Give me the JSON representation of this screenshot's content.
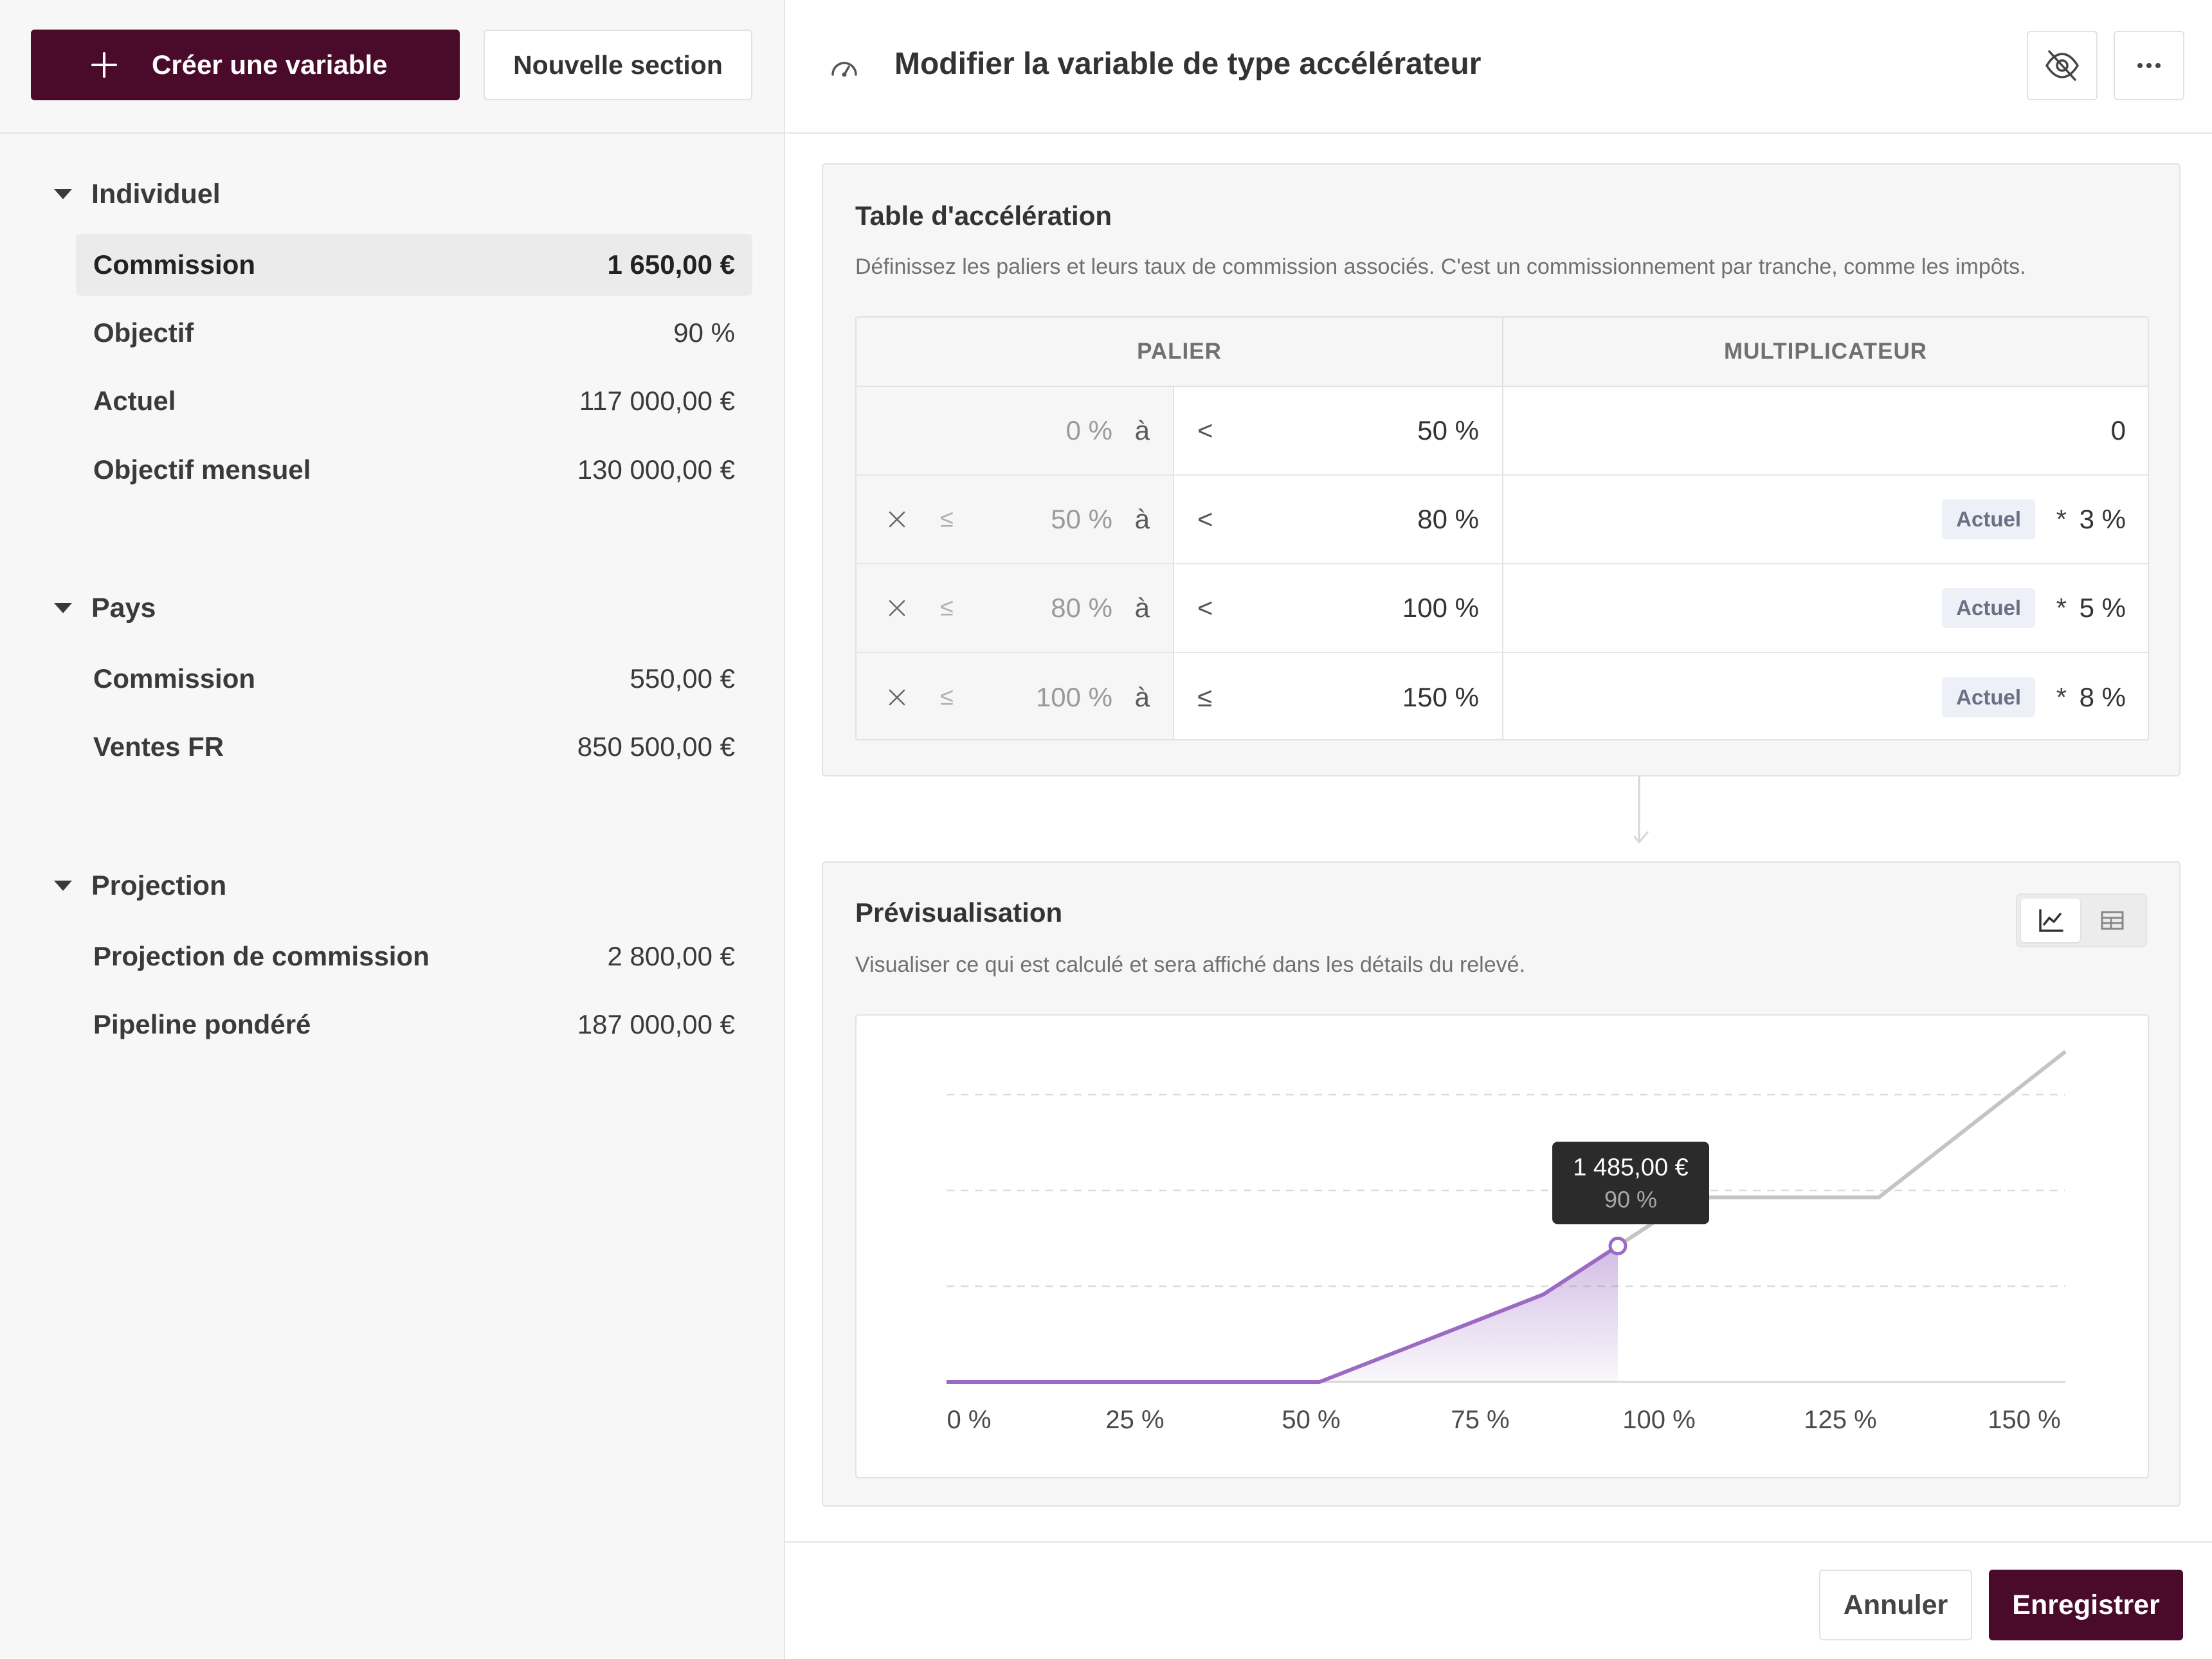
{
  "sidebar": {
    "create_label": "Créer une variable",
    "section_label": "Nouvelle section",
    "groups": [
      {
        "title": "Individuel",
        "items": [
          {
            "name": "Commission",
            "value": "1 650,00 €"
          },
          {
            "name": "Objectif",
            "value": "90 %"
          },
          {
            "name": "Actuel",
            "value": "117 000,00 €"
          },
          {
            "name": "Objectif mensuel",
            "value": "130 000,00 €"
          }
        ]
      },
      {
        "title": "Pays",
        "items": [
          {
            "name": "Commission",
            "value": "550,00 €"
          },
          {
            "name": "Ventes FR",
            "value": "850 500,00 €"
          }
        ]
      },
      {
        "title": "Projection",
        "items": [
          {
            "name": "Projection de commission",
            "value": "2 800,00 €"
          },
          {
            "name": "Pipeline pondéré",
            "value": "187 000,00 €"
          }
        ]
      }
    ]
  },
  "header": {
    "title": "Modifier la variable de type accélérateur",
    "icons": [
      "gauge-icon",
      "eye-off-icon",
      "more-icon"
    ]
  },
  "table_card": {
    "title": "Table d'accélération",
    "description": "Définissez les paliers et leurs taux de commission associés. C'est un commissionnement par tranche, comme les impôts.",
    "col_palier": "PALIER",
    "col_multiplicateur": "MULTIPLICATEUR",
    "rows": [
      {
        "from": "0 %",
        "a": "à",
        "op": "<",
        "to": "50 %",
        "mult": "0"
      },
      {
        "le": "≤",
        "from": "50 %",
        "a": "à",
        "op": "<",
        "to": "80 %",
        "chip": "Actuel",
        "times": "*",
        "mult": "3 %"
      },
      {
        "le": "≤",
        "from": "80 %",
        "a": "à",
        "op": "<",
        "to": "100 %",
        "chip": "Actuel",
        "times": "*",
        "mult": "5 %"
      },
      {
        "le": "≤",
        "from": "100 %",
        "a": "à",
        "op": "≤",
        "to": "150 %",
        "chip": "Actuel",
        "times": "*",
        "mult": "8 %"
      }
    ]
  },
  "preview_card": {
    "title": "Prévisualisation",
    "description": "Visualiser ce qui est calculé et sera affiché dans les détails du relevé.",
    "toggle": [
      "line-chart-icon",
      "table-icon"
    ]
  },
  "chart_data": {
    "type": "line",
    "x_unit": "%",
    "xticks": [
      "0 %",
      "25 %",
      "50 %",
      "75 %",
      "100 %",
      "125 %",
      "150 %"
    ],
    "xlim": [
      0,
      150
    ],
    "ylim": [
      0,
      3400
    ],
    "grid": true,
    "series": [
      {
        "points": [
          {
            "x": 0,
            "y": 0
          },
          {
            "x": 50,
            "y": 0
          },
          {
            "x": 80,
            "y": 900
          },
          {
            "x": 100,
            "y": 1900
          },
          {
            "x": 125,
            "y": 1900
          },
          {
            "x": 150,
            "y": 3400
          }
        ]
      }
    ],
    "highlight": {
      "x": 90,
      "y": 1485,
      "label_value": "1 485,00 €",
      "label_x": "90 %"
    }
  },
  "footer": {
    "cancel_label": "Annuler",
    "save_label": "Enregistrer"
  },
  "colors": {
    "brand": "#4a0a2a",
    "accent_line": "#9b6bc4",
    "future_line": "#c4c4c4"
  }
}
